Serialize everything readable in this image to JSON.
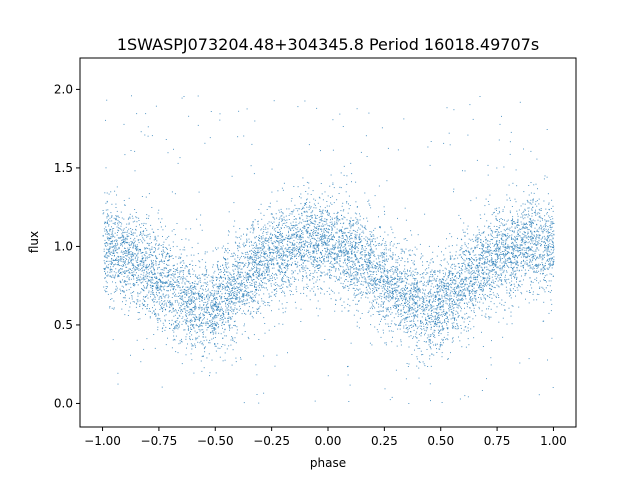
{
  "chart_data": {
    "type": "scatter",
    "title": "1SWASPJ073204.48+304345.8 Period 16018.49707s",
    "xlabel": "phase",
    "ylabel": "flux",
    "xlim": [
      -1.1,
      1.1
    ],
    "ylim": [
      -0.15,
      2.2
    ],
    "xticks": [
      -1.0,
      -0.75,
      -0.5,
      -0.25,
      0.0,
      0.25,
      0.5,
      0.75,
      1.0
    ],
    "xtick_labels": [
      "−1.00",
      "−0.75",
      "−0.50",
      "−0.25",
      "0.00",
      "0.25",
      "0.50",
      "0.75",
      "1.00"
    ],
    "yticks": [
      0.0,
      0.5,
      1.0,
      1.5,
      2.0
    ],
    "ytick_labels": [
      "0.0",
      "0.5",
      "1.0",
      "1.5",
      "2.0"
    ],
    "grid": false,
    "marker_color": "#1f77b4",
    "x_range": [
      -1.0,
      1.0
    ],
    "y_range_plotted": [
      0.0,
      2.0
    ],
    "point_count_approx": 40000,
    "trend_description": "folded light curve, two periods of sinusoidal variation",
    "trend_points": [
      {
        "x": -1.0,
        "y": 1.0
      },
      {
        "x": -0.875,
        "y": 0.93
      },
      {
        "x": -0.75,
        "y": 0.8
      },
      {
        "x": -0.625,
        "y": 0.66
      },
      {
        "x": -0.55,
        "y": 0.61
      },
      {
        "x": -0.5,
        "y": 0.63
      },
      {
        "x": -0.375,
        "y": 0.8
      },
      {
        "x": -0.25,
        "y": 0.95
      },
      {
        "x": -0.1,
        "y": 1.04
      },
      {
        "x": 0.0,
        "y": 1.03
      },
      {
        "x": 0.125,
        "y": 0.93
      },
      {
        "x": 0.25,
        "y": 0.8
      },
      {
        "x": 0.375,
        "y": 0.66
      },
      {
        "x": 0.45,
        "y": 0.61
      },
      {
        "x": 0.5,
        "y": 0.63
      },
      {
        "x": 0.625,
        "y": 0.8
      },
      {
        "x": 0.75,
        "y": 0.95
      },
      {
        "x": 0.9,
        "y": 1.04
      },
      {
        "x": 1.0,
        "y": 1.0
      }
    ],
    "scatter_sigma": 0.15
  }
}
